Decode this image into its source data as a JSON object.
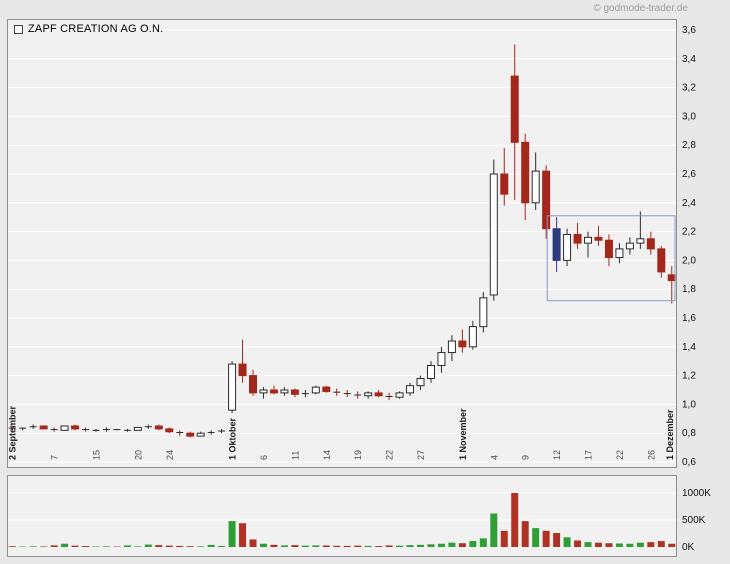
{
  "header": {
    "copyright": "© godmode-trader.de"
  },
  "legend": {
    "title": "ZAPF CREATION AG O.N."
  },
  "colors": {
    "page_bg": "#e8e8e8",
    "pane_bg": "#f1f1f1",
    "grid": "#ffffff",
    "pane_border": "#8c8c8c",
    "candle_up_fill": "#ffffff",
    "candle_up_stroke": "#2b2b2b",
    "candle_down": "#a3271a",
    "volume_up": "#2f9e34",
    "volume_down": "#b03224",
    "box": "#8d99c9",
    "tick_major": "#1a1a1a",
    "tick_minor": "#4a4a4a",
    "axis_text": "#111111"
  },
  "chart_data": {
    "type": "candlestick+volume",
    "title": "ZAPF CREATION AG O.N.",
    "source": "© godmode-trader.de",
    "price_axis": {
      "min": 0.6,
      "max": 3.6,
      "step": 0.2,
      "tick_labels": [
        "3,6",
        "3,4",
        "3,2",
        "3,0",
        "2,8",
        "2,6",
        "2,4",
        "2,2",
        "2,0",
        "1,8",
        "1,6",
        "1,4",
        "1,2",
        "1,0",
        "0,8",
        "0,6"
      ]
    },
    "volume_axis": {
      "ticks": [
        {
          "value": 1000,
          "label": "1000K"
        },
        {
          "value": 500,
          "label": "500K"
        },
        {
          "value": 0,
          "label": "0K"
        }
      ],
      "max": 1080
    },
    "x_ticks": [
      {
        "i": 0,
        "label": "2 September",
        "major": true
      },
      {
        "i": 4,
        "label": "7"
      },
      {
        "i": 8,
        "label": "15"
      },
      {
        "i": 12,
        "label": "20"
      },
      {
        "i": 15,
        "label": "24"
      },
      {
        "i": 21,
        "label": "1 Oktober",
        "major": true
      },
      {
        "i": 24,
        "label": "6"
      },
      {
        "i": 27,
        "label": "11"
      },
      {
        "i": 30,
        "label": "14"
      },
      {
        "i": 33,
        "label": "19"
      },
      {
        "i": 36,
        "label": "22"
      },
      {
        "i": 39,
        "label": "27"
      },
      {
        "i": 43,
        "label": "1 November",
        "major": true
      },
      {
        "i": 46,
        "label": "4"
      },
      {
        "i": 49,
        "label": "9"
      },
      {
        "i": 52,
        "label": "12"
      },
      {
        "i": 55,
        "label": "17"
      },
      {
        "i": 58,
        "label": "22"
      },
      {
        "i": 61,
        "label": "26"
      },
      {
        "i": 63,
        "label": "1 Dezember",
        "major": true
      }
    ],
    "candles": [
      {
        "o": 0.84,
        "h": 0.85,
        "l": 0.82,
        "c": 0.83,
        "v": 15
      },
      {
        "o": 0.83,
        "h": 0.84,
        "l": 0.82,
        "c": 0.84,
        "v": 8
      },
      {
        "o": 0.84,
        "h": 0.86,
        "l": 0.83,
        "c": 0.85,
        "v": 12
      },
      {
        "o": 0.85,
        "h": 0.85,
        "l": 0.83,
        "c": 0.83,
        "v": 10
      },
      {
        "o": 0.83,
        "h": 0.84,
        "l": 0.81,
        "c": 0.82,
        "v": 30
      },
      {
        "o": 0.82,
        "h": 0.85,
        "l": 0.82,
        "c": 0.85,
        "v": 60
      },
      {
        "o": 0.85,
        "h": 0.86,
        "l": 0.82,
        "c": 0.83,
        "v": 25
      },
      {
        "o": 0.83,
        "h": 0.84,
        "l": 0.81,
        "c": 0.82,
        "v": 18
      },
      {
        "o": 0.82,
        "h": 0.83,
        "l": 0.81,
        "c": 0.82,
        "v": 10
      },
      {
        "o": 0.82,
        "h": 0.84,
        "l": 0.81,
        "c": 0.83,
        "v": 12
      },
      {
        "o": 0.83,
        "h": 0.83,
        "l": 0.82,
        "c": 0.82,
        "v": 8
      },
      {
        "o": 0.82,
        "h": 0.83,
        "l": 0.81,
        "c": 0.82,
        "v": 30
      },
      {
        "o": 0.82,
        "h": 0.84,
        "l": 0.82,
        "c": 0.84,
        "v": 10
      },
      {
        "o": 0.84,
        "h": 0.86,
        "l": 0.83,
        "c": 0.85,
        "v": 45
      },
      {
        "o": 0.85,
        "h": 0.86,
        "l": 0.82,
        "c": 0.83,
        "v": 35
      },
      {
        "o": 0.83,
        "h": 0.84,
        "l": 0.8,
        "c": 0.81,
        "v": 25
      },
      {
        "o": 0.81,
        "h": 0.82,
        "l": 0.78,
        "c": 0.8,
        "v": 20
      },
      {
        "o": 0.8,
        "h": 0.81,
        "l": 0.77,
        "c": 0.78,
        "v": 15
      },
      {
        "o": 0.78,
        "h": 0.81,
        "l": 0.78,
        "c": 0.8,
        "v": 12
      },
      {
        "o": 0.8,
        "h": 0.82,
        "l": 0.79,
        "c": 0.81,
        "v": 40
      },
      {
        "o": 0.81,
        "h": 0.83,
        "l": 0.8,
        "c": 0.82,
        "v": 20
      },
      {
        "o": 0.96,
        "h": 1.3,
        "l": 0.94,
        "c": 1.28,
        "v": 480
      },
      {
        "o": 1.28,
        "h": 1.45,
        "l": 1.15,
        "c": 1.2,
        "v": 440
      },
      {
        "o": 1.2,
        "h": 1.24,
        "l": 1.06,
        "c": 1.08,
        "v": 140
      },
      {
        "o": 1.08,
        "h": 1.12,
        "l": 1.04,
        "c": 1.1,
        "v": 60
      },
      {
        "o": 1.1,
        "h": 1.13,
        "l": 1.07,
        "c": 1.08,
        "v": 40
      },
      {
        "o": 1.08,
        "h": 1.12,
        "l": 1.06,
        "c": 1.1,
        "v": 30
      },
      {
        "o": 1.1,
        "h": 1.11,
        "l": 1.05,
        "c": 1.07,
        "v": 35
      },
      {
        "o": 1.07,
        "h": 1.1,
        "l": 1.05,
        "c": 1.08,
        "v": 25
      },
      {
        "o": 1.08,
        "h": 1.13,
        "l": 1.07,
        "c": 1.12,
        "v": 30
      },
      {
        "o": 1.12,
        "h": 1.13,
        "l": 1.08,
        "c": 1.09,
        "v": 28
      },
      {
        "o": 1.09,
        "h": 1.11,
        "l": 1.06,
        "c": 1.08,
        "v": 22
      },
      {
        "o": 1.08,
        "h": 1.1,
        "l": 1.05,
        "c": 1.07,
        "v": 20
      },
      {
        "o": 1.07,
        "h": 1.09,
        "l": 1.04,
        "c": 1.06,
        "v": 25
      },
      {
        "o": 1.06,
        "h": 1.09,
        "l": 1.04,
        "c": 1.08,
        "v": 20
      },
      {
        "o": 1.08,
        "h": 1.1,
        "l": 1.05,
        "c": 1.06,
        "v": 18
      },
      {
        "o": 1.06,
        "h": 1.08,
        "l": 1.03,
        "c": 1.05,
        "v": 30
      },
      {
        "o": 1.05,
        "h": 1.09,
        "l": 1.04,
        "c": 1.08,
        "v": 25
      },
      {
        "o": 1.08,
        "h": 1.15,
        "l": 1.06,
        "c": 1.13,
        "v": 35
      },
      {
        "o": 1.13,
        "h": 1.2,
        "l": 1.1,
        "c": 1.18,
        "v": 40
      },
      {
        "o": 1.18,
        "h": 1.3,
        "l": 1.15,
        "c": 1.27,
        "v": 50
      },
      {
        "o": 1.27,
        "h": 1.4,
        "l": 1.22,
        "c": 1.36,
        "v": 60
      },
      {
        "o": 1.36,
        "h": 1.48,
        "l": 1.3,
        "c": 1.44,
        "v": 80
      },
      {
        "o": 1.44,
        "h": 1.52,
        "l": 1.36,
        "c": 1.4,
        "v": 70
      },
      {
        "o": 1.4,
        "h": 1.58,
        "l": 1.38,
        "c": 1.54,
        "v": 110
      },
      {
        "o": 1.54,
        "h": 1.78,
        "l": 1.5,
        "c": 1.74,
        "v": 160
      },
      {
        "o": 1.76,
        "h": 2.7,
        "l": 1.72,
        "c": 2.6,
        "v": 620
      },
      {
        "o": 2.6,
        "h": 2.78,
        "l": 2.38,
        "c": 2.46,
        "v": 300
      },
      {
        "o": 3.28,
        "h": 3.5,
        "l": 2.42,
        "c": 2.82,
        "v": 1000
      },
      {
        "o": 2.82,
        "h": 2.88,
        "l": 2.28,
        "c": 2.4,
        "v": 480
      },
      {
        "o": 2.4,
        "h": 2.75,
        "l": 2.35,
        "c": 2.62,
        "v": 350
      },
      {
        "o": 2.62,
        "h": 2.66,
        "l": 2.15,
        "c": 2.22,
        "v": 300
      },
      {
        "o": 2.22,
        "h": 2.3,
        "l": 1.92,
        "c": 2.0,
        "v": 260,
        "fill": "#2c3a80"
      },
      {
        "o": 2.0,
        "h": 2.22,
        "l": 1.96,
        "c": 2.18,
        "v": 180
      },
      {
        "o": 2.18,
        "h": 2.26,
        "l": 2.08,
        "c": 2.12,
        "v": 120
      },
      {
        "o": 2.12,
        "h": 2.2,
        "l": 2.02,
        "c": 2.16,
        "v": 90
      },
      {
        "o": 2.16,
        "h": 2.24,
        "l": 2.1,
        "c": 2.14,
        "v": 80
      },
      {
        "o": 2.14,
        "h": 2.18,
        "l": 1.96,
        "c": 2.02,
        "v": 70
      },
      {
        "o": 2.02,
        "h": 2.12,
        "l": 1.98,
        "c": 2.08,
        "v": 65
      },
      {
        "o": 2.08,
        "h": 2.16,
        "l": 2.04,
        "c": 2.12,
        "v": 60
      },
      {
        "o": 2.12,
        "h": 2.34,
        "l": 2.08,
        "c": 2.15,
        "v": 80
      },
      {
        "o": 2.15,
        "h": 2.2,
        "l": 2.04,
        "c": 2.08,
        "v": 90
      },
      {
        "o": 2.08,
        "h": 2.1,
        "l": 1.88,
        "c": 1.92,
        "v": 110
      },
      {
        "o": 1.9,
        "h": 1.96,
        "l": 1.7,
        "c": 1.86,
        "v": 60
      }
    ],
    "annotation_box": {
      "start_index": 51.6,
      "end_index": 63.9,
      "price_top": 2.31,
      "price_bottom": 1.72
    }
  }
}
